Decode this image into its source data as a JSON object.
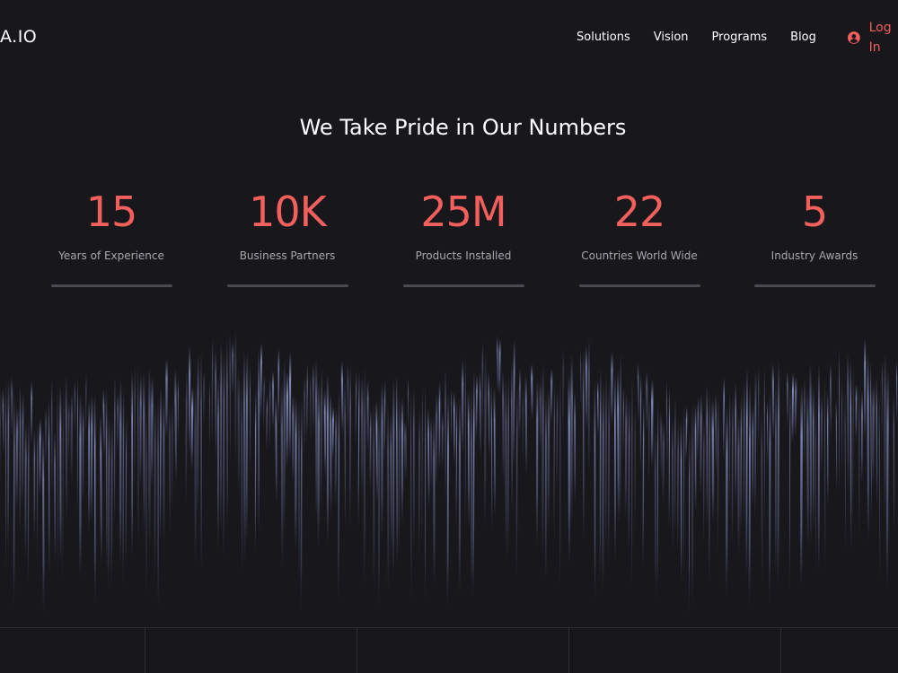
{
  "header": {
    "logo": "A.IO",
    "nav": [
      {
        "label": "Solutions"
      },
      {
        "label": "Vision"
      },
      {
        "label": "Programs"
      },
      {
        "label": "Blog"
      }
    ],
    "login_label": "Log In",
    "login_icon": "user-circle-icon"
  },
  "stats_section": {
    "title": "We Take Pride in Our Numbers",
    "items": [
      {
        "value": "15",
        "label": "Years of Experience"
      },
      {
        "value": "10K",
        "label": "Business Partners"
      },
      {
        "value": "25M",
        "label": "Products Installed"
      },
      {
        "value": "22",
        "label": "Countries World Wide"
      },
      {
        "value": "5",
        "label": "Industry Awards"
      }
    ]
  },
  "colors": {
    "background": "#18171b",
    "accent": "#f25f5c",
    "muted_text": "#a7a7ad",
    "bar": "#4a4a50",
    "viz_streak": "#7d86b5"
  }
}
